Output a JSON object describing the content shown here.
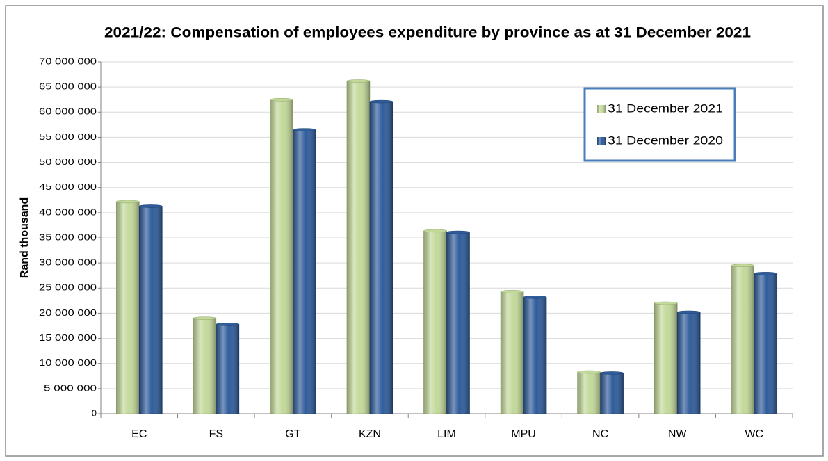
{
  "chart_data": {
    "type": "bar",
    "title": "2021/22: Compensation of employees expenditure by province as at 31 December 2021",
    "y_label": "Rand thousand",
    "categories": [
      "EC",
      "FS",
      "GT",
      "KZN",
      "LIM",
      "MPU",
      "NC",
      "NW",
      "WC"
    ],
    "series": [
      {
        "name": "31 December 2021",
        "color": "#c3d99a",
        "values": [
          42200000,
          19000000,
          62500000,
          66200000,
          36400000,
          24300000,
          8300000,
          22000000,
          29500000
        ]
      },
      {
        "name": "31 December 2020",
        "color": "#2f5c9b",
        "values": [
          41300000,
          17800000,
          56500000,
          62100000,
          36100000,
          23200000,
          8100000,
          20200000,
          27900000
        ]
      }
    ],
    "ylim": [
      0,
      70000000
    ],
    "yticks": [
      0,
      {
        "value": 5000000,
        "label": "5 000 000"
      },
      {
        "value": 10000000,
        "label": "10 000 000"
      },
      {
        "value": 15000000,
        "label": "15 000 000"
      },
      {
        "value": 20000000,
        "label": "20 000 000"
      },
      {
        "value": 25000000,
        "label": "25 000 000"
      },
      {
        "value": 30000000,
        "label": "30 000 000"
      },
      {
        "value": 35000000,
        "label": "35 000 000"
      },
      {
        "value": 40000000,
        "label": "40 000 000"
      },
      {
        "value": 45000000,
        "label": "45 000 000"
      },
      {
        "value": 50000000,
        "label": "50 000 000"
      },
      {
        "value": 55000000,
        "label": "55 000 000"
      },
      {
        "value": 60000000,
        "label": "60 000 000"
      },
      {
        "value": 65000000,
        "label": "65 000 000"
      },
      {
        "value": 70000000,
        "label": "70 000 000"
      }
    ],
    "grid": true,
    "legend": "upper right"
  }
}
